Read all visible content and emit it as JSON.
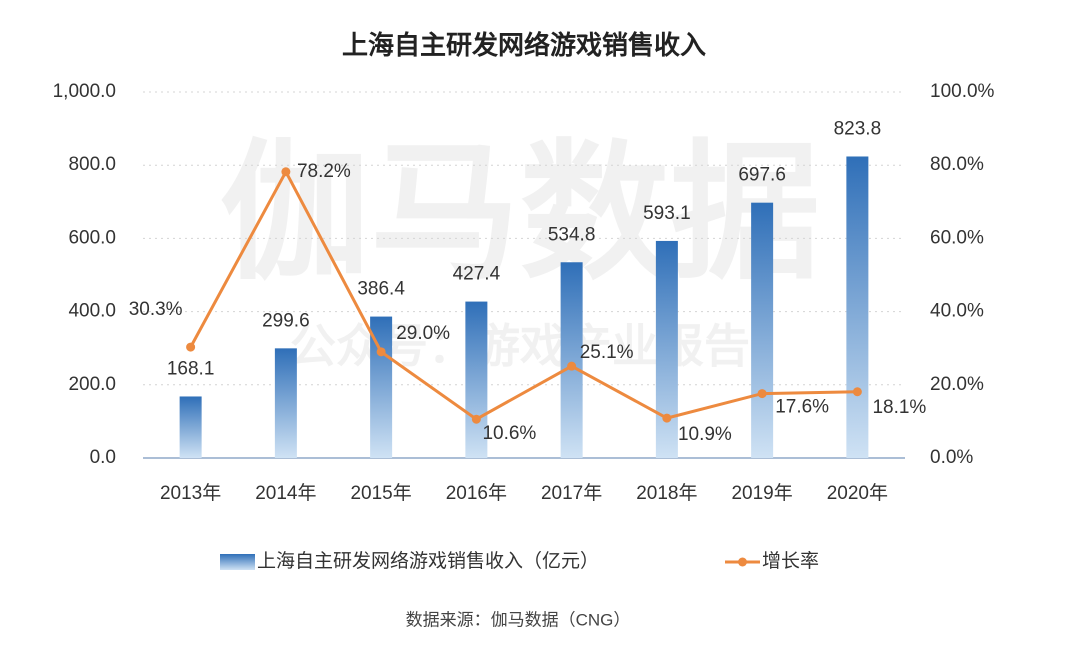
{
  "chart_data": {
    "type": "bar_line",
    "title": "上海自主研发网络游戏销售收入",
    "source": "数据来源：伽马数据（CNG）",
    "watermark": [
      "伽马数据",
      "公众号：游戏产业报告"
    ],
    "categories": [
      "2013年",
      "2014年",
      "2015年",
      "2016年",
      "2017年",
      "2018年",
      "2019年",
      "2020年"
    ],
    "series": [
      {
        "name": "上海自主研发网络游戏销售收入（亿元）",
        "type": "bar",
        "color": "#2f6fb8",
        "values": [
          168.1,
          299.6,
          386.4,
          427.4,
          534.8,
          593.1,
          697.6,
          823.8
        ]
      },
      {
        "name": "增长率",
        "type": "line",
        "axis": "y2",
        "color": "#ed8a3f",
        "values": [
          30.3,
          78.2,
          29.0,
          10.6,
          25.1,
          10.9,
          17.6,
          18.1
        ],
        "value_labels": [
          "30.3%",
          "78.2%",
          "29.0%",
          "10.6%",
          "25.1%",
          "10.9%",
          "17.6%",
          "18.1%"
        ]
      }
    ],
    "ylim": [
      0,
      1000
    ],
    "yticks": [
      {
        "value": 0,
        "label": "0.0"
      },
      {
        "value": 200,
        "label": "200.0"
      },
      {
        "value": 400,
        "label": "400.0"
      },
      {
        "value": 600,
        "label": "600.0"
      },
      {
        "value": 800,
        "label": "800.0"
      },
      {
        "value": 1000,
        "label": "1,000.0"
      }
    ],
    "y2lim": [
      0,
      100
    ],
    "y2ticks": [
      {
        "value": 0,
        "label": "0.0%"
      },
      {
        "value": 20,
        "label": "20.0%"
      },
      {
        "value": 40,
        "label": "40.0%"
      },
      {
        "value": 60,
        "label": "60.0%"
      },
      {
        "value": 80,
        "label": "80.0%"
      },
      {
        "value": 100,
        "label": "100.0%"
      }
    ],
    "grid": true
  }
}
